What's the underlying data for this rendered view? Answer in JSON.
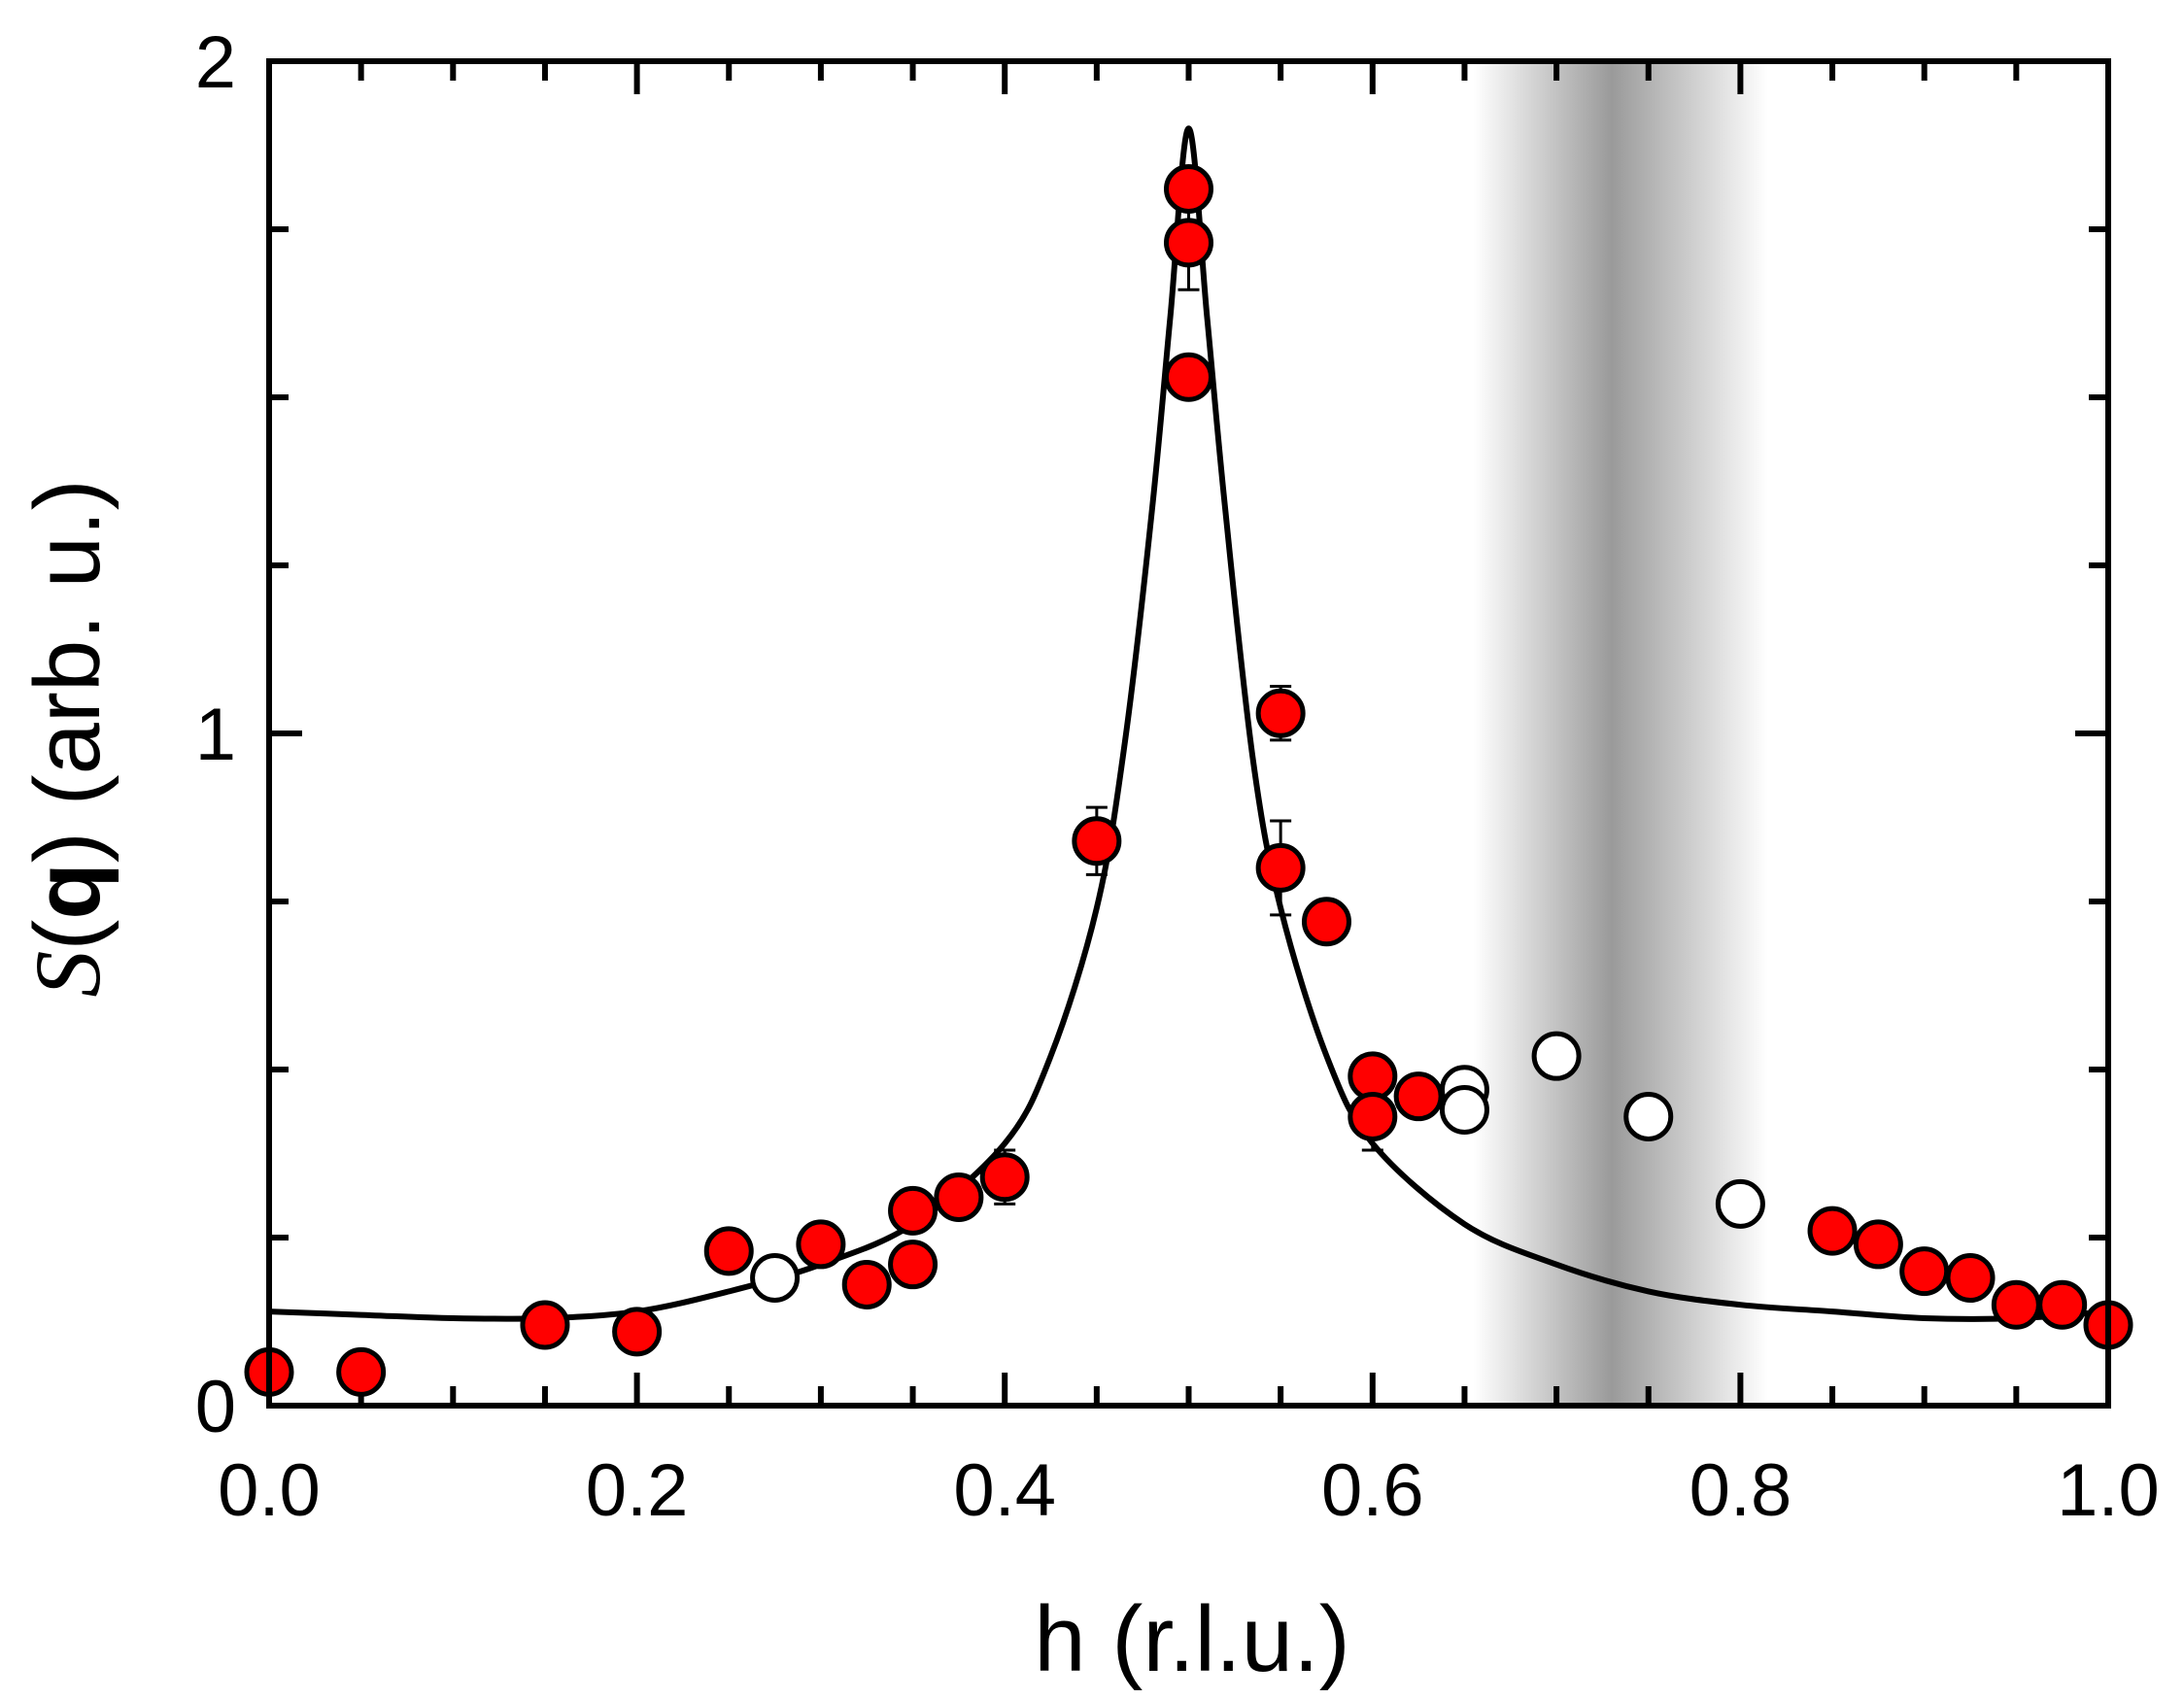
{
  "chart_data": {
    "type": "scatter",
    "title": "",
    "xlabel": "h (r.l.u.)",
    "ylabel": {
      "symbol": "S",
      "open": "(",
      "bold": "q",
      "close": ")",
      "units": " (arb. u.)"
    },
    "xlim": [
      0.0,
      1.0
    ],
    "ylim": [
      0.0,
      2.0
    ],
    "xticks": [
      {
        "value": 0.0,
        "label": "0.0"
      },
      {
        "value": 0.2,
        "label": "0.2"
      },
      {
        "value": 0.4,
        "label": "0.4"
      },
      {
        "value": 0.6,
        "label": "0.6"
      },
      {
        "value": 0.8,
        "label": "0.8"
      },
      {
        "value": 1.0,
        "label": "1.0"
      }
    ],
    "xminor_step": 0.05,
    "yticks": [
      {
        "value": 0,
        "label": "0"
      },
      {
        "value": 1,
        "label": "1"
      },
      {
        "value": 2,
        "label": "2"
      }
    ],
    "yminor_step": 0.25,
    "shaded_band": {
      "x_from": 0.655,
      "x_to": 0.815,
      "x_center": 0.73,
      "color": "#9a9a9a"
    },
    "series": [
      {
        "name": "filled",
        "marker": "filled-circle",
        "color": "#ff0000",
        "points": [
          {
            "x": 0.0,
            "y": 0.05
          },
          {
            "x": 0.05,
            "y": 0.05
          },
          {
            "x": 0.15,
            "y": 0.12
          },
          {
            "x": 0.2,
            "y": 0.11
          },
          {
            "x": 0.25,
            "y": 0.23
          },
          {
            "x": 0.3,
            "y": 0.24
          },
          {
            "x": 0.325,
            "y": 0.18
          },
          {
            "x": 0.35,
            "y": 0.21
          },
          {
            "x": 0.35,
            "y": 0.29
          },
          {
            "x": 0.375,
            "y": 0.31,
            "err": 0.03
          },
          {
            "x": 0.4,
            "y": 0.34,
            "err": 0.04
          },
          {
            "x": 0.45,
            "y": 0.84,
            "err": 0.05
          },
          {
            "x": 0.5,
            "y": 1.81,
            "err": 0.03
          },
          {
            "x": 0.5,
            "y": 1.73,
            "err": 0.07
          },
          {
            "x": 0.5,
            "y": 1.53,
            "err": 0.03
          },
          {
            "x": 0.55,
            "y": 1.03,
            "err": 0.04
          },
          {
            "x": 0.55,
            "y": 0.8,
            "err": 0.07
          },
          {
            "x": 0.575,
            "y": 0.72
          },
          {
            "x": 0.6,
            "y": 0.49,
            "err": 0.03
          },
          {
            "x": 0.6,
            "y": 0.43,
            "err": 0.05
          },
          {
            "x": 0.625,
            "y": 0.46
          },
          {
            "x": 0.85,
            "y": 0.26
          },
          {
            "x": 0.875,
            "y": 0.24,
            "err": 0.03
          },
          {
            "x": 0.9,
            "y": 0.2
          },
          {
            "x": 0.925,
            "y": 0.19
          },
          {
            "x": 0.95,
            "y": 0.15
          },
          {
            "x": 0.975,
            "y": 0.15
          },
          {
            "x": 1.0,
            "y": 0.12
          }
        ]
      },
      {
        "name": "open",
        "marker": "open-circle",
        "color": "#ffffff",
        "points": [
          {
            "x": 0.275,
            "y": 0.19
          },
          {
            "x": 0.65,
            "y": 0.47
          },
          {
            "x": 0.65,
            "y": 0.44
          },
          {
            "x": 0.7,
            "y": 0.52
          },
          {
            "x": 0.75,
            "y": 0.43
          },
          {
            "x": 0.8,
            "y": 0.3
          }
        ]
      }
    ],
    "fit": {
      "name": "fit",
      "type": "line",
      "color": "#000000",
      "x": [
        0.0,
        0.05,
        0.1,
        0.15,
        0.2,
        0.25,
        0.3,
        0.35,
        0.4,
        0.425,
        0.45,
        0.465,
        0.48,
        0.49,
        0.5,
        0.51,
        0.52,
        0.535,
        0.55,
        0.575,
        0.6,
        0.65,
        0.7,
        0.75,
        0.8,
        0.85,
        0.9,
        0.95,
        1.0
      ],
      "y": [
        0.14,
        0.135,
        0.13,
        0.13,
        0.14,
        0.17,
        0.21,
        0.27,
        0.39,
        0.52,
        0.74,
        0.98,
        1.33,
        1.62,
        1.9,
        1.62,
        1.33,
        0.96,
        0.74,
        0.52,
        0.39,
        0.27,
        0.21,
        0.17,
        0.15,
        0.14,
        0.13,
        0.13,
        0.14
      ]
    }
  }
}
